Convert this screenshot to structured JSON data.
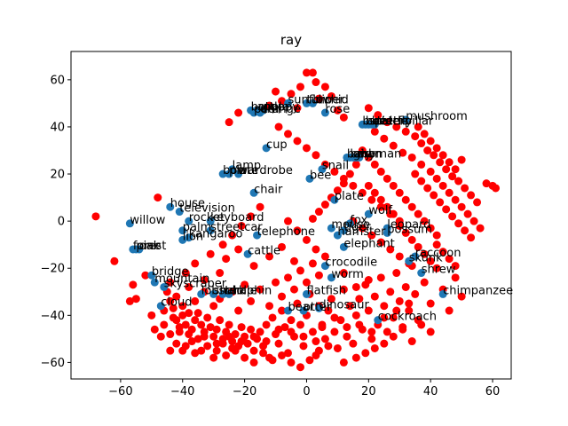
{
  "chart_data": {
    "type": "scatter",
    "title": "ray",
    "xlabel": "",
    "ylabel": "",
    "xlim": [
      -76,
      66
    ],
    "ylim": [
      -67,
      72
    ],
    "xticks": [
      -60,
      -40,
      -20,
      0,
      20,
      40,
      60
    ],
    "yticks": [
      -60,
      -40,
      -20,
      0,
      20,
      40,
      60
    ],
    "xtick_labels": [
      "−60",
      "−40",
      "−20",
      "0",
      "20",
      "40",
      "60"
    ],
    "ytick_labels": [
      "−60",
      "−40",
      "−20",
      "0",
      "20",
      "40",
      "60"
    ],
    "grid": false,
    "colors": {
      "labeled": "#1f77b4",
      "unlabeled": "#ff0000"
    },
    "labeled_points": [
      {
        "label": "mushroom",
        "x": 32,
        "y": 43
      },
      {
        "label": "sunflower",
        "x": -6,
        "y": 50
      },
      {
        "label": "tulip",
        "x": 0,
        "y": 50
      },
      {
        "label": "orchid",
        "x": 2,
        "y": 50
      },
      {
        "label": "rose",
        "x": 6,
        "y": 46
      },
      {
        "label": "bottle",
        "x": -18,
        "y": 47
      },
      {
        "label": "apple",
        "x": -16,
        "y": 47
      },
      {
        "label": "orange",
        "x": -15,
        "y": 46
      },
      {
        "label": "pear",
        "x": -17,
        "y": 46
      },
      {
        "label": "poppy",
        "x": -14,
        "y": 47
      },
      {
        "label": "butterfly",
        "x": 18,
        "y": 41
      },
      {
        "label": "bee",
        "x": 19,
        "y": 41
      },
      {
        "label": "spider",
        "x": 20,
        "y": 41
      },
      {
        "label": "beetle",
        "x": 21,
        "y": 41
      },
      {
        "label": "caterpillar",
        "x": 22,
        "y": 41
      },
      {
        "label": "cup",
        "x": -13,
        "y": 31
      },
      {
        "label": "baby",
        "x": 13,
        "y": 27
      },
      {
        "label": "boy",
        "x": 14,
        "y": 27
      },
      {
        "label": "girl",
        "x": 15,
        "y": 27
      },
      {
        "label": "man",
        "x": 16,
        "y": 27
      },
      {
        "label": "woman",
        "x": 17,
        "y": 27
      },
      {
        "label": "snail",
        "x": 5,
        "y": 22
      },
      {
        "label": "lamp",
        "x": -24,
        "y": 22
      },
      {
        "label": "bowl",
        "x": -27,
        "y": 20
      },
      {
        "label": "plate",
        "x": -25,
        "y": 20
      },
      {
        "label": "wardrobe",
        "x": -22,
        "y": 20
      },
      {
        "label": "bee",
        "x": 1,
        "y": 18
      },
      {
        "label": "chair",
        "x": -17,
        "y": 12
      },
      {
        "label": "plate",
        "x": 9,
        "y": 9
      },
      {
        "label": "house",
        "x": -44,
        "y": 6
      },
      {
        "label": "television",
        "x": -41,
        "y": 4
      },
      {
        "label": "willow",
        "x": -57,
        "y": -1
      },
      {
        "label": "rocket",
        "x": -38,
        "y": 0
      },
      {
        "label": "keyboard",
        "x": -31,
        "y": 0
      },
      {
        "label": "wolf",
        "x": 20,
        "y": 3
      },
      {
        "label": "leopard",
        "x": 26,
        "y": -3
      },
      {
        "label": "possum",
        "x": 26,
        "y": -5
      },
      {
        "label": "palm",
        "x": -40,
        "y": -4
      },
      {
        "label": "streetcar",
        "x": -31,
        "y": -4
      },
      {
        "label": "kangaroo",
        "x": -38,
        "y": -7
      },
      {
        "label": "lion",
        "x": -40,
        "y": -8
      },
      {
        "label": "telephone",
        "x": -16,
        "y": -6
      },
      {
        "label": "mouse",
        "x": 8,
        "y": -3
      },
      {
        "label": "hamster",
        "x": 10,
        "y": -6
      },
      {
        "label": "tiger",
        "x": 12,
        "y": -4
      },
      {
        "label": "fox",
        "x": 14,
        "y": -1
      },
      {
        "label": "elephant",
        "x": 12,
        "y": -11
      },
      {
        "label": "forest",
        "x": -56,
        "y": -12
      },
      {
        "label": "pine",
        "x": -55,
        "y": -12
      },
      {
        "label": "oak",
        "x": -54,
        "y": -12
      },
      {
        "label": "cattle",
        "x": -19,
        "y": -14
      },
      {
        "label": "raccoon",
        "x": 35,
        "y": -15
      },
      {
        "label": "skunk",
        "x": 33,
        "y": -17
      },
      {
        "label": "crocodile",
        "x": 6,
        "y": -19
      },
      {
        "label": "shrew",
        "x": 37,
        "y": -22
      },
      {
        "label": "worm",
        "x": 8,
        "y": -24
      },
      {
        "label": "bridge",
        "x": -50,
        "y": -23
      },
      {
        "label": "mountain",
        "x": -49,
        "y": -26
      },
      {
        "label": "skyscraper",
        "x": -46,
        "y": -28
      },
      {
        "label": "chimpanzee",
        "x": 44,
        "y": -31
      },
      {
        "label": "flatfish",
        "x": 0,
        "y": -31
      },
      {
        "label": "lobster",
        "x": -34,
        "y": -31
      },
      {
        "label": "shark",
        "x": -30,
        "y": -31
      },
      {
        "label": "whale",
        "x": -27,
        "y": -31
      },
      {
        "label": "dolphin",
        "x": -25,
        "y": -31
      },
      {
        "label": "cloud",
        "x": -47,
        "y": -36
      },
      {
        "label": "dinosaur",
        "x": 4,
        "y": -37
      },
      {
        "label": "bear",
        "x": -6,
        "y": -38
      },
      {
        "label": "otter",
        "x": -1,
        "y": -38
      },
      {
        "label": "cockroach",
        "x": 23,
        "y": -42
      }
    ],
    "unlabeled_points": [
      [
        -68,
        2
      ],
      [
        -62,
        -17
      ],
      [
        -57,
        -34
      ],
      [
        -55,
        -33
      ],
      [
        -56,
        -27
      ],
      [
        -52,
        -23
      ],
      [
        -48,
        10
      ],
      [
        -50,
        -40
      ],
      [
        -44,
        -34
      ],
      [
        -43,
        -37
      ],
      [
        -42,
        -42
      ],
      [
        -41,
        -45
      ],
      [
        -40,
        -40
      ],
      [
        -39,
        -44
      ],
      [
        -38,
        -48
      ],
      [
        -37,
        -46
      ],
      [
        -36,
        -42
      ],
      [
        -35,
        -39
      ],
      [
        -34,
        -44
      ],
      [
        -33,
        -47
      ],
      [
        -32,
        -41
      ],
      [
        -31,
        -45
      ],
      [
        -30,
        -49
      ],
      [
        -29,
        -46
      ],
      [
        -28,
        -42
      ],
      [
        -27,
        -50
      ],
      [
        -26,
        -47
      ],
      [
        -25,
        -44
      ],
      [
        -24,
        -51
      ],
      [
        -23,
        -48
      ],
      [
        -22,
        -53
      ],
      [
        -21,
        -45
      ],
      [
        -20,
        -49
      ],
      [
        -19,
        -52
      ],
      [
        -18,
        -46
      ],
      [
        -17,
        -55
      ],
      [
        -16,
        -50
      ],
      [
        -15,
        -47
      ],
      [
        -14,
        -53
      ],
      [
        -13,
        -44
      ],
      [
        -12,
        -58
      ],
      [
        -11,
        -41
      ],
      [
        -10,
        -48
      ],
      [
        -9,
        -52
      ],
      [
        -8,
        -38
      ],
      [
        -7,
        -45
      ],
      [
        -6,
        -56
      ],
      [
        -5,
        -42
      ],
      [
        -4,
        -49
      ],
      [
        -3,
        -35
      ],
      [
        -2,
        -44
      ],
      [
        -1,
        -53
      ],
      [
        0,
        -40
      ],
      [
        1,
        -31
      ],
      [
        2,
        -47
      ],
      [
        3,
        -57
      ],
      [
        4,
        -36
      ],
      [
        5,
        -44
      ],
      [
        6,
        -50
      ],
      [
        7,
        -38
      ],
      [
        8,
        -33
      ],
      [
        9,
        -47
      ],
      [
        10,
        -54
      ],
      [
        11,
        -42
      ],
      [
        12,
        -29
      ],
      [
        13,
        -45
      ],
      [
        14,
        -36
      ],
      [
        15,
        -52
      ],
      [
        16,
        -40
      ],
      [
        17,
        -33
      ],
      [
        18,
        -46
      ],
      [
        19,
        -27
      ],
      [
        20,
        -38
      ],
      [
        21,
        -50
      ],
      [
        22,
        -32
      ],
      [
        23,
        -44
      ],
      [
        24,
        -24
      ],
      [
        25,
        -36
      ],
      [
        26,
        -47
      ],
      [
        27,
        -30
      ],
      [
        28,
        -41
      ],
      [
        29,
        -22
      ],
      [
        30,
        -34
      ],
      [
        31,
        -45
      ],
      [
        32,
        -28
      ],
      [
        33,
        -38
      ],
      [
        34,
        -19
      ],
      [
        35,
        -31
      ],
      [
        36,
        -42
      ],
      [
        38,
        -26
      ],
      [
        40,
        -35
      ],
      [
        42,
        -20
      ],
      [
        44,
        -29
      ],
      [
        46,
        -38
      ],
      [
        48,
        -24
      ],
      [
        50,
        -32
      ],
      [
        -45,
        -30
      ],
      [
        -44,
        -26
      ],
      [
        -38,
        -28
      ],
      [
        -36,
        -34
      ],
      [
        -33,
        -30
      ],
      [
        -30,
        -36
      ],
      [
        -28,
        -33
      ],
      [
        -24,
        -30
      ],
      [
        -22,
        -38
      ],
      [
        -20,
        -27
      ],
      [
        -18,
        -34
      ],
      [
        -15,
        -29
      ],
      [
        -12,
        -36
      ],
      [
        -10,
        -26
      ],
      [
        -8,
        -32
      ],
      [
        -6,
        -24
      ],
      [
        -4,
        -29
      ],
      [
        -2,
        -21
      ],
      [
        0,
        -26
      ],
      [
        2,
        -18
      ],
      [
        4,
        -23
      ],
      [
        6,
        -15
      ],
      [
        -36,
        -18
      ],
      [
        -31,
        -14
      ],
      [
        -26,
        -16
      ],
      [
        -22,
        -12
      ],
      [
        -17,
        -19
      ],
      [
        -12,
        -15
      ],
      [
        -8,
        -11
      ],
      [
        -4,
        -17
      ],
      [
        -35,
        -50
      ],
      [
        -32,
        -53
      ],
      [
        -29,
        -55
      ],
      [
        -26,
        -57
      ],
      [
        -23,
        -55
      ],
      [
        -20,
        -58
      ],
      [
        -17,
        -60
      ],
      [
        -14,
        -56
      ],
      [
        -11,
        -59
      ],
      [
        -8,
        -57
      ],
      [
        -5,
        -60
      ],
      [
        -2,
        -62
      ],
      [
        1,
        -59
      ],
      [
        4,
        -55
      ],
      [
        12,
        -60
      ],
      [
        16,
        -58
      ],
      [
        19,
        -56
      ],
      [
        22,
        -54
      ],
      [
        25,
        -52
      ],
      [
        28,
        -49
      ],
      [
        31,
        -46
      ],
      [
        34,
        -51
      ],
      [
        37,
        -44
      ],
      [
        40,
        -47
      ],
      [
        -40,
        -36
      ],
      [
        -38,
        -39
      ],
      [
        -43,
        -41
      ],
      [
        -46,
        -44
      ],
      [
        -41,
        -47
      ],
      [
        -37,
        -51
      ],
      [
        -33,
        -49
      ],
      [
        -29,
        -52
      ],
      [
        -25,
        -49
      ],
      [
        -21,
        -51
      ],
      [
        -17,
        -49
      ],
      [
        -13,
        -51
      ],
      [
        -9,
        -46
      ],
      [
        -5,
        -47
      ],
      [
        -1,
        -49
      ],
      [
        3,
        -51
      ],
      [
        7,
        -53
      ],
      [
        -46,
        -38
      ],
      [
        -44,
        -48
      ],
      [
        -42,
        -32
      ],
      [
        0,
        63
      ],
      [
        2,
        63
      ],
      [
        3,
        59
      ],
      [
        -2,
        57
      ],
      [
        -5,
        54
      ],
      [
        -8,
        51
      ],
      [
        -10,
        55
      ],
      [
        -12,
        49
      ],
      [
        -3,
        48
      ],
      [
        4,
        52
      ],
      [
        6,
        57
      ],
      [
        8,
        53
      ],
      [
        10,
        47
      ],
      [
        12,
        44
      ],
      [
        -22,
        46
      ],
      [
        -25,
        42
      ],
      [
        -9,
        40
      ],
      [
        -6,
        37
      ],
      [
        -3,
        34
      ],
      [
        0,
        31
      ],
      [
        3,
        28
      ],
      [
        6,
        24
      ],
      [
        9,
        21
      ],
      [
        12,
        18
      ],
      [
        15,
        15
      ],
      [
        18,
        12
      ],
      [
        21,
        9
      ],
      [
        24,
        6
      ],
      [
        27,
        3
      ],
      [
        30,
        0
      ],
      [
        20,
        48
      ],
      [
        23,
        45
      ],
      [
        26,
        42
      ],
      [
        29,
        40
      ],
      [
        32,
        38
      ],
      [
        35,
        36
      ],
      [
        37,
        33
      ],
      [
        39,
        30
      ],
      [
        41,
        28
      ],
      [
        43,
        25
      ],
      [
        45,
        22
      ],
      [
        47,
        19
      ],
      [
        49,
        17
      ],
      [
        51,
        14
      ],
      [
        53,
        11
      ],
      [
        55,
        8
      ],
      [
        22,
        38
      ],
      [
        25,
        35
      ],
      [
        28,
        32
      ],
      [
        31,
        29
      ],
      [
        34,
        27
      ],
      [
        37,
        24
      ],
      [
        40,
        21
      ],
      [
        42,
        18
      ],
      [
        44,
        15
      ],
      [
        46,
        12
      ],
      [
        48,
        9
      ],
      [
        50,
        6
      ],
      [
        52,
        3
      ],
      [
        54,
        0
      ],
      [
        56,
        -3
      ],
      [
        58,
        16
      ],
      [
        60,
        15
      ],
      [
        61,
        14
      ],
      [
        35,
        20
      ],
      [
        37,
        17
      ],
      [
        39,
        14
      ],
      [
        41,
        11
      ],
      [
        43,
        8
      ],
      [
        45,
        5
      ],
      [
        47,
        2
      ],
      [
        49,
        -1
      ],
      [
        51,
        -4
      ],
      [
        53,
        -7
      ],
      [
        20,
        15
      ],
      [
        22,
        12
      ],
      [
        24,
        9
      ],
      [
        26,
        6
      ],
      [
        28,
        3
      ],
      [
        30,
        -2
      ],
      [
        32,
        -5
      ],
      [
        34,
        -8
      ],
      [
        36,
        -11
      ],
      [
        38,
        -14
      ],
      [
        40,
        -17
      ],
      [
        42,
        -10
      ],
      [
        44,
        -13
      ],
      [
        46,
        -16
      ],
      [
        48,
        -19
      ],
      [
        18,
        30
      ],
      [
        20,
        27
      ],
      [
        22,
        24
      ],
      [
        24,
        21
      ],
      [
        26,
        18
      ],
      [
        28,
        15
      ],
      [
        30,
        12
      ],
      [
        32,
        9
      ],
      [
        34,
        6
      ],
      [
        36,
        3
      ],
      [
        38,
        0
      ],
      [
        40,
        -3
      ],
      [
        42,
        -6
      ],
      [
        36,
        40
      ],
      [
        38,
        37
      ],
      [
        40,
        34
      ],
      [
        42,
        31
      ],
      [
        44,
        28
      ],
      [
        46,
        25
      ],
      [
        48,
        22
      ],
      [
        50,
        26
      ],
      [
        16,
        24
      ],
      [
        14,
        20
      ],
      [
        12,
        16
      ],
      [
        10,
        13
      ],
      [
        8,
        10
      ],
      [
        6,
        7
      ],
      [
        4,
        4
      ],
      [
        2,
        1
      ],
      [
        -15,
        6
      ],
      [
        -18,
        2
      ],
      [
        -21,
        -2
      ],
      [
        -24,
        -6
      ],
      [
        -27,
        -10
      ],
      [
        -6,
        0
      ],
      [
        -3,
        -4
      ],
      [
        0,
        -8
      ],
      [
        3,
        -12
      ],
      [
        15,
        0
      ],
      [
        18,
        -3
      ],
      [
        21,
        -6
      ],
      [
        24,
        -9
      ],
      [
        27,
        -12
      ],
      [
        30,
        -15
      ],
      [
        33,
        -18
      ],
      [
        -44,
        -55
      ],
      [
        -40,
        -55
      ],
      [
        -36,
        -56
      ],
      [
        -30,
        -58
      ],
      [
        -27,
        -52
      ],
      [
        -24,
        -54
      ],
      [
        5,
        -45
      ],
      [
        9,
        -41
      ],
      [
        13,
        -49
      ],
      [
        17,
        -44
      ],
      [
        21,
        -47
      ],
      [
        25,
        -41
      ],
      [
        29,
        -38
      ],
      [
        33,
        -35
      ],
      [
        -49,
        -46
      ],
      [
        -47,
        -49
      ],
      [
        -42,
        -52
      ],
      [
        -39,
        -53
      ],
      [
        -34,
        -55
      ],
      [
        20,
        -25
      ],
      [
        16,
        -28
      ],
      [
        12,
        -22
      ],
      [
        -28,
        -22
      ],
      [
        -33,
        -25
      ],
      [
        -39,
        -22
      ]
    ]
  }
}
